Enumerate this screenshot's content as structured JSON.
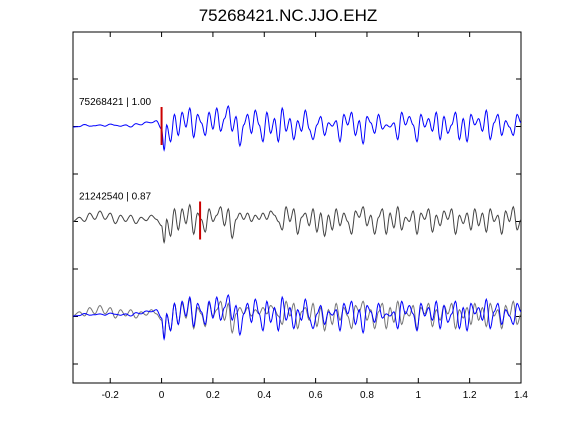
{
  "chart_data": {
    "type": "line",
    "title": "75268421.NC.JJO.EHZ",
    "xlabel": "",
    "ylabel": "",
    "xlim": [
      -0.345,
      1.4
    ],
    "x_ticks": [
      -0.2,
      0,
      0.2,
      0.4,
      0.6,
      0.8,
      1.0,
      1.2,
      1.4
    ],
    "x_tick_labels": [
      "-0.2",
      "0",
      "0.2",
      "0.4",
      "0.6",
      "0.8",
      "1",
      "1.2",
      "1.4"
    ],
    "grid": false,
    "panels": [
      {
        "label": "75268421 | 1.00",
        "offset": 0,
        "series": [
          {
            "key": "template",
            "color": "#0000ff"
          }
        ],
        "pick": {
          "x": 0.0,
          "color": "#cc0000"
        }
      },
      {
        "label": "21242540 | 0.87",
        "offset": 1,
        "series": [
          {
            "key": "detected",
            "color": "#444444"
          }
        ],
        "pick": {
          "x": 0.15,
          "color": "#cc0000"
        }
      },
      {
        "label": "",
        "offset": 2,
        "series": [
          {
            "key": "detected",
            "color": "#777777"
          },
          {
            "key": "template",
            "color": "#0000ff"
          }
        ]
      }
    ],
    "waveforms": {
      "template": {
        "x": [
          -0.345,
          -0.32,
          -0.3,
          -0.28,
          -0.26,
          -0.24,
          -0.22,
          -0.2,
          -0.18,
          -0.16,
          -0.14,
          -0.12,
          -0.1,
          -0.08,
          -0.06,
          -0.04,
          -0.02,
          0.0,
          0.01,
          0.02,
          0.035,
          0.05,
          0.065,
          0.08,
          0.095,
          0.11,
          0.125,
          0.14,
          0.155,
          0.17,
          0.185,
          0.2,
          0.215,
          0.23,
          0.245,
          0.26,
          0.275,
          0.29,
          0.305,
          0.32,
          0.335,
          0.35,
          0.365,
          0.38,
          0.395,
          0.41,
          0.425,
          0.44,
          0.455,
          0.47,
          0.485,
          0.5,
          0.515,
          0.53,
          0.545,
          0.56,
          0.575,
          0.59,
          0.605,
          0.62,
          0.635,
          0.65,
          0.665,
          0.68,
          0.695,
          0.71,
          0.725,
          0.74,
          0.755,
          0.77,
          0.785,
          0.8,
          0.815,
          0.83,
          0.845,
          0.86,
          0.875,
          0.89,
          0.905,
          0.92,
          0.935,
          0.95,
          0.965,
          0.98,
          0.995,
          1.01,
          1.025,
          1.04,
          1.055,
          1.07,
          1.085,
          1.1,
          1.115,
          1.13,
          1.145,
          1.16,
          1.175,
          1.19,
          1.205,
          1.22,
          1.235,
          1.25,
          1.265,
          1.28,
          1.295,
          1.31,
          1.325,
          1.34,
          1.355,
          1.37,
          1.385,
          1.4
        ],
        "y": [
          0.0,
          0.01,
          0.06,
          0.02,
          0.03,
          0.05,
          0.02,
          0.07,
          0.04,
          0.02,
          0.05,
          0.0,
          0.08,
          0.05,
          0.12,
          0.1,
          0.15,
          -0.05,
          -0.55,
          0.05,
          -0.35,
          0.3,
          -0.2,
          0.35,
          0.0,
          0.45,
          -0.25,
          0.3,
          0.1,
          -0.2,
          0.35,
          -0.05,
          0.45,
          -0.1,
          0.2,
          0.5,
          -0.1,
          0.25,
          -0.45,
          0.05,
          0.3,
          -0.15,
          0.4,
          0.05,
          -0.35,
          0.35,
          -0.15,
          0.2,
          -0.35,
          0.45,
          -0.1,
          0.2,
          -0.3,
          0.15,
          -0.1,
          0.4,
          -0.05,
          -0.3,
          0.05,
          0.25,
          -0.2,
          0.1,
          0.02,
          0.15,
          -0.35,
          0.3,
          0.05,
          0.35,
          -0.2,
          0.15,
          -0.4,
          0.25,
          0.1,
          -0.15,
          0.3,
          -0.05,
          0.05,
          0.0,
          0.1,
          -0.3,
          0.35,
          0.05,
          0.25,
          0.05,
          -0.35,
          0.3,
          0.0,
          0.2,
          -0.1,
          0.35,
          -0.3,
          0.25,
          -0.15,
          0.05,
          0.35,
          -0.3,
          0.2,
          -0.35,
          0.3,
          0.05,
          0.2,
          -0.1,
          0.4,
          -0.3,
          0.1,
          0.3,
          -0.2,
          0.15,
          0.0,
          -0.2,
          0.3,
          0.1
        ]
      },
      "detected": {
        "x": [
          -0.345,
          -0.32,
          -0.3,
          -0.28,
          -0.26,
          -0.24,
          -0.22,
          -0.2,
          -0.18,
          -0.16,
          -0.14,
          -0.12,
          -0.1,
          -0.08,
          -0.06,
          -0.04,
          -0.02,
          0.0,
          0.01,
          0.02,
          0.035,
          0.05,
          0.065,
          0.08,
          0.095,
          0.11,
          0.125,
          0.14,
          0.155,
          0.17,
          0.185,
          0.2,
          0.215,
          0.23,
          0.245,
          0.26,
          0.275,
          0.29,
          0.305,
          0.32,
          0.335,
          0.35,
          0.365,
          0.38,
          0.395,
          0.41,
          0.425,
          0.44,
          0.455,
          0.47,
          0.485,
          0.5,
          0.515,
          0.53,
          0.545,
          0.56,
          0.575,
          0.59,
          0.605,
          0.62,
          0.635,
          0.65,
          0.665,
          0.68,
          0.695,
          0.71,
          0.725,
          0.74,
          0.755,
          0.77,
          0.785,
          0.8,
          0.815,
          0.83,
          0.845,
          0.86,
          0.875,
          0.89,
          0.905,
          0.92,
          0.935,
          0.95,
          0.965,
          0.98,
          0.995,
          1.01,
          1.025,
          1.04,
          1.055,
          1.07,
          1.085,
          1.1,
          1.115,
          1.13,
          1.145,
          1.16,
          1.175,
          1.19,
          1.205,
          1.22,
          1.235,
          1.25,
          1.265,
          1.28,
          1.295,
          1.31,
          1.325,
          1.34,
          1.355,
          1.37,
          1.385,
          1.4
        ],
        "y": [
          0.0,
          0.1,
          0.0,
          0.2,
          0.05,
          0.25,
          0.05,
          0.2,
          -0.05,
          0.15,
          0.0,
          0.15,
          -0.05,
          0.1,
          0.02,
          0.15,
          0.05,
          -0.1,
          -0.5,
          0.05,
          -0.35,
          0.3,
          -0.2,
          0.3,
          -0.05,
          0.4,
          -0.3,
          0.2,
          0.05,
          -0.25,
          0.3,
          0.0,
          0.15,
          0.35,
          -0.1,
          0.3,
          -0.4,
          0.05,
          0.2,
          0.05,
          0.2,
          0.0,
          0.15,
          0.05,
          0.2,
          0.05,
          0.25,
          0.15,
          0.0,
          -0.2,
          0.35,
          0.0,
          0.3,
          -0.3,
          0.1,
          0.2,
          -0.1,
          0.3,
          -0.25,
          0.2,
          -0.35,
          0.15,
          -0.2,
          0.3,
          -0.1,
          0.2,
          0.0,
          -0.3,
          0.25,
          0.1,
          0.35,
          -0.1,
          0.15,
          -0.3,
          0.1,
          0.3,
          -0.3,
          0.2,
          -0.15,
          0.35,
          -0.2,
          0.1,
          0.0,
          0.25,
          -0.3,
          0.2,
          0.05,
          0.3,
          -0.25,
          0.15,
          -0.1,
          0.25,
          0.05,
          0.3,
          -0.3,
          0.15,
          -0.05,
          0.2,
          -0.2,
          0.3,
          -0.1,
          0.2,
          -0.25,
          0.3,
          0.0,
          0.15,
          -0.3,
          0.25,
          0.0,
          0.35,
          -0.2,
          0.05
        ]
      }
    }
  }
}
